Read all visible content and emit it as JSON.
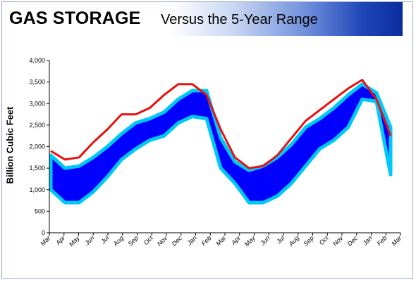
{
  "header": {
    "title_main": "GAS STORAGE",
    "title_sub": "Versus the 5-Year Range"
  },
  "colors": {
    "range_fill": "#0000ff",
    "range_edge": "#00c8f8",
    "storage_line": "#e81010",
    "axis": "#000000"
  },
  "chart_data": {
    "type": "area",
    "title": "GAS STORAGE Versus the 5-Year Range",
    "ylabel": "Billion Cubic Feet",
    "ylim": [
      0,
      4000
    ],
    "yticks": [
      0,
      500,
      1000,
      1500,
      2000,
      2500,
      3000,
      3500,
      4000
    ],
    "ytick_labels": [
      "0",
      "500",
      "1,000",
      "1,500",
      "2,000",
      "2,500",
      "3,000",
      "3,500",
      "4,000"
    ],
    "grid": false,
    "legend": "none",
    "x_tick_labels": [
      "Mar",
      "Apr",
      "May",
      "Jun",
      "Jul",
      "Aug",
      "Sep",
      "Oct",
      "Nov",
      "Dec",
      "Jan",
      "Feb",
      "Mar",
      "Apr",
      "May",
      "Jun",
      "Jul",
      "Aug",
      "Sep",
      "Oct",
      "Nov",
      "Dec",
      "Jan",
      "Feb",
      "Mar"
    ],
    "series": [
      {
        "values_low": [
          1000,
          700,
          700,
          950,
          1300,
          1700,
          1950,
          2150,
          2250,
          2550,
          2700,
          2650,
          1500,
          1150,
          700,
          700,
          850,
          1150,
          1550,
          1950,
          2150,
          2450,
          3100,
          3050,
          1350
        ],
        "values_high": [
          1800,
          1500,
          1550,
          1750,
          2000,
          2300,
          2550,
          2650,
          2800,
          3100,
          3300,
          3300,
          2200,
          1650,
          1450,
          1550,
          1750,
          2050,
          2450,
          2650,
          2900,
          3200,
          3450,
          3250,
          2450
        ]
      },
      {
        "values": [
          1900,
          1700,
          1750,
          2100,
          2400,
          2750,
          2750,
          2900,
          3200,
          3450,
          3450,
          3200,
          2400,
          1750,
          1500,
          1550,
          1800,
          2200,
          2600,
          2850,
          3100,
          3350,
          3550,
          3100,
          2250
        ]
      }
    ]
  }
}
